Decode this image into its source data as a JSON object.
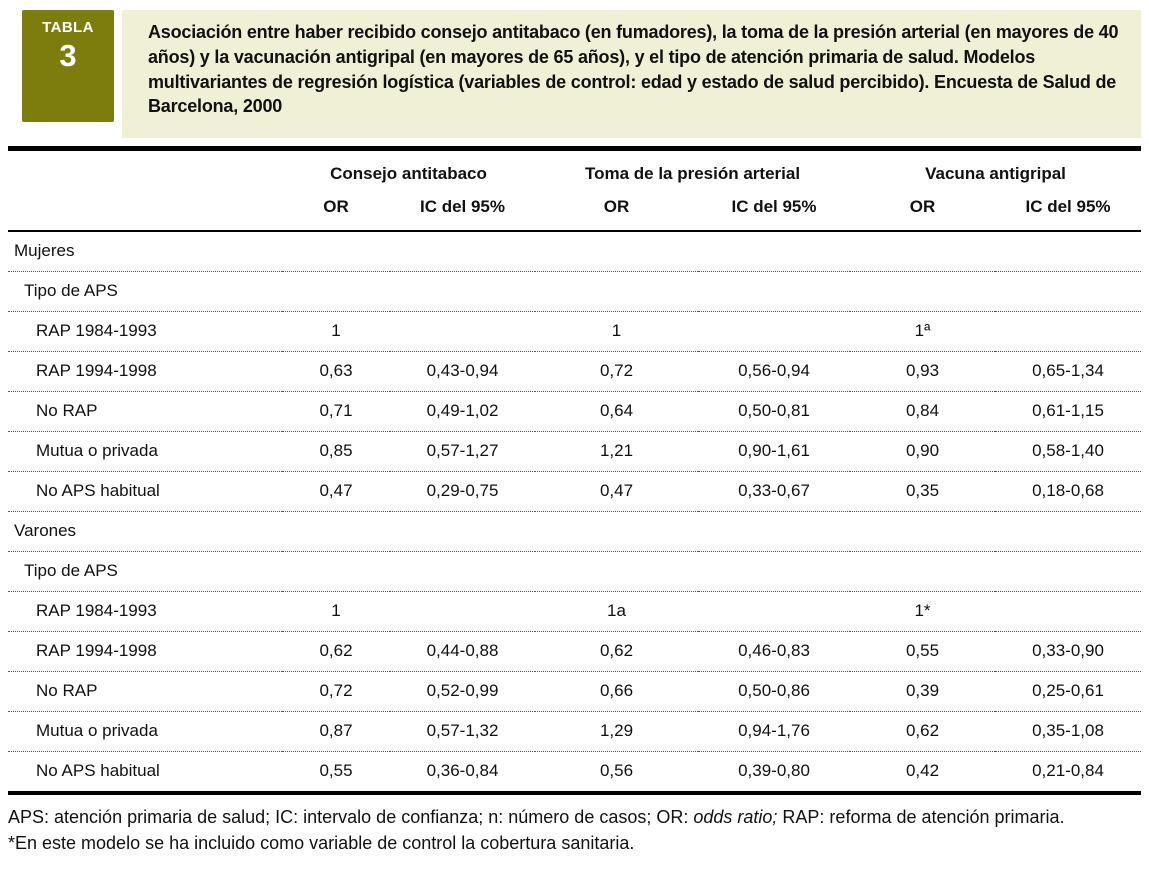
{
  "badge": {
    "label": "TABLA",
    "number": "3"
  },
  "title": "Asociación entre haber recibido consejo antitabaco (en fumadores), la toma de la presión arterial (en mayores de 40 años) y la vacunación antigripal (en mayores de 65 años), y el tipo de atención primaria de salud. Modelos multivariantes de regresión logística (variables de control: edad y estado de salud percibido). Encuesta de Salud de Barcelona, 2000",
  "colors": {
    "badge_bg": "#7d7d0e",
    "title_bg": "#eff0d5",
    "rule": "#000000"
  },
  "table": {
    "column_groups": [
      {
        "label": "Consejo antitabaco"
      },
      {
        "label": "Toma de la presión arterial"
      },
      {
        "label": "Vacuna antigripal"
      }
    ],
    "sub_headers": [
      "OR",
      "IC del 95%",
      "OR",
      "IC del 95%",
      "OR",
      "IC del 95%"
    ],
    "rows": [
      {
        "type": "section",
        "label": "Mujeres",
        "values": [
          "",
          "",
          "",
          "",
          "",
          ""
        ]
      },
      {
        "type": "subsection",
        "label": "Tipo de APS",
        "values": [
          "",
          "",
          "",
          "",
          "",
          ""
        ]
      },
      {
        "type": "data",
        "label": "RAP 1984-1993",
        "values": [
          "1",
          "",
          "1",
          "",
          "1ª",
          ""
        ]
      },
      {
        "type": "data",
        "label": "RAP 1994-1998",
        "values": [
          "0,63",
          "0,43-0,94",
          "0,72",
          "0,56-0,94",
          "0,93",
          "0,65-1,34"
        ]
      },
      {
        "type": "data",
        "label": "No RAP",
        "values": [
          "0,71",
          "0,49-1,02",
          "0,64",
          "0,50-0,81",
          "0,84",
          "0,61-1,15"
        ]
      },
      {
        "type": "data",
        "label": "Mutua o privada",
        "values": [
          "0,85",
          "0,57-1,27",
          "1,21",
          "0,90-1,61",
          "0,90",
          "0,58-1,40"
        ]
      },
      {
        "type": "data",
        "label": "No APS habitual",
        "values": [
          "0,47",
          "0,29-0,75",
          "0,47",
          "0,33-0,67",
          "0,35",
          "0,18-0,68"
        ]
      },
      {
        "type": "section",
        "label": "Varones",
        "values": [
          "",
          "",
          "",
          "",
          "",
          ""
        ]
      },
      {
        "type": "subsection",
        "label": "Tipo de APS",
        "values": [
          "",
          "",
          "",
          "",
          "",
          ""
        ]
      },
      {
        "type": "data",
        "label": "RAP 1984-1993",
        "values": [
          "1",
          "",
          "1a",
          "",
          "1*",
          ""
        ]
      },
      {
        "type": "data",
        "label": "RAP 1994-1998",
        "values": [
          "0,62",
          "0,44-0,88",
          "0,62",
          "0,46-0,83",
          "0,55",
          "0,33-0,90"
        ]
      },
      {
        "type": "data",
        "label": "No RAP",
        "values": [
          "0,72",
          "0,52-0,99",
          "0,66",
          "0,50-0,86",
          "0,39",
          "0,25-0,61"
        ]
      },
      {
        "type": "data",
        "label": "Mutua o privada",
        "values": [
          "0,87",
          "0,57-1,32",
          "1,29",
          "0,94-1,76",
          "0,62",
          "0,35-1,08"
        ]
      },
      {
        "type": "data",
        "label": "No APS habitual",
        "values": [
          "0,55",
          "0,36-0,84",
          "0,56",
          "0,39-0,80",
          "0,42",
          "0,21-0,84"
        ]
      }
    ]
  },
  "footnotes": {
    "abbrev_parts": [
      {
        "text": "APS: atención primaria de salud; IC: intervalo de confianza; n: número de casos; OR: ",
        "italic": false
      },
      {
        "text": "odds ratio;",
        "italic": true
      },
      {
        "text": " RAP: reforma de atención primaria.",
        "italic": false
      }
    ],
    "note": "*En este modelo se ha incluido como variable de control la cobertura sanitaria."
  }
}
